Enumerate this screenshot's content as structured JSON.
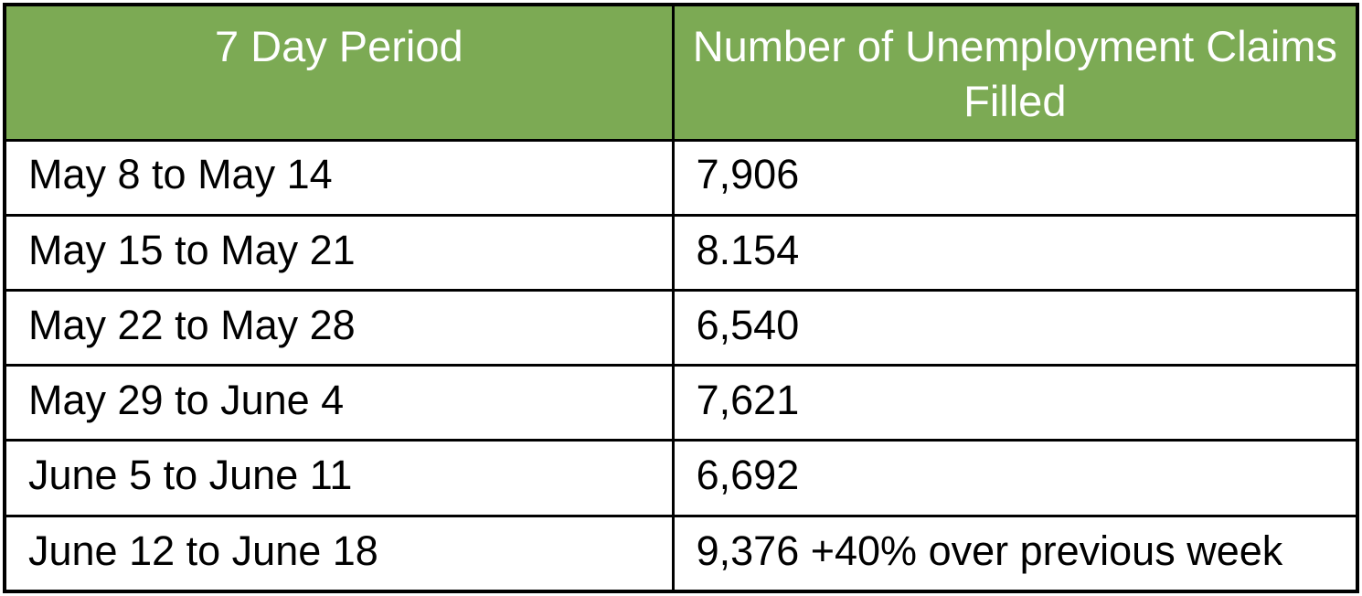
{
  "table": {
    "columns": [
      {
        "label": "7 Day Period"
      },
      {
        "label": "Number of Unemployment Claims Filled"
      }
    ],
    "rows": [
      {
        "period": "May 8 to May 14",
        "claims": "7,906"
      },
      {
        "period": "May 15 to May 21",
        "claims": "8.154"
      },
      {
        "period": "May 22 to May 28",
        "claims": "6,540"
      },
      {
        "period": "May 29 to June 4",
        "claims": "7,621"
      },
      {
        "period": "June 5 to June 11",
        "claims": "6,692"
      },
      {
        "period": "June 12 to June 18",
        "claims": "9,376 +40% over previous week"
      }
    ],
    "colors": {
      "header_bg": "#7caa54",
      "header_text": "#ffffff",
      "body_text": "#000000",
      "border": "#000000"
    }
  },
  "chart_data": {
    "type": "table",
    "columns": [
      "7 Day Period",
      "Number of Unemployment Claims Filled"
    ],
    "rows": [
      [
        "May 8 to May 14",
        "7,906"
      ],
      [
        "May 15 to May 21",
        "8.154"
      ],
      [
        "May 22 to May 28",
        "6,540"
      ],
      [
        "May 29 to June 4",
        "7,621"
      ],
      [
        "June 5 to June 11",
        "6,692"
      ],
      [
        "June 12 to June 18",
        "9,376 +40% over previous week"
      ]
    ],
    "values_numeric": [
      7906,
      8154,
      6540,
      7621,
      6692,
      9376
    ],
    "annotation": "+40% over previous week (June 12 to June 18)"
  }
}
